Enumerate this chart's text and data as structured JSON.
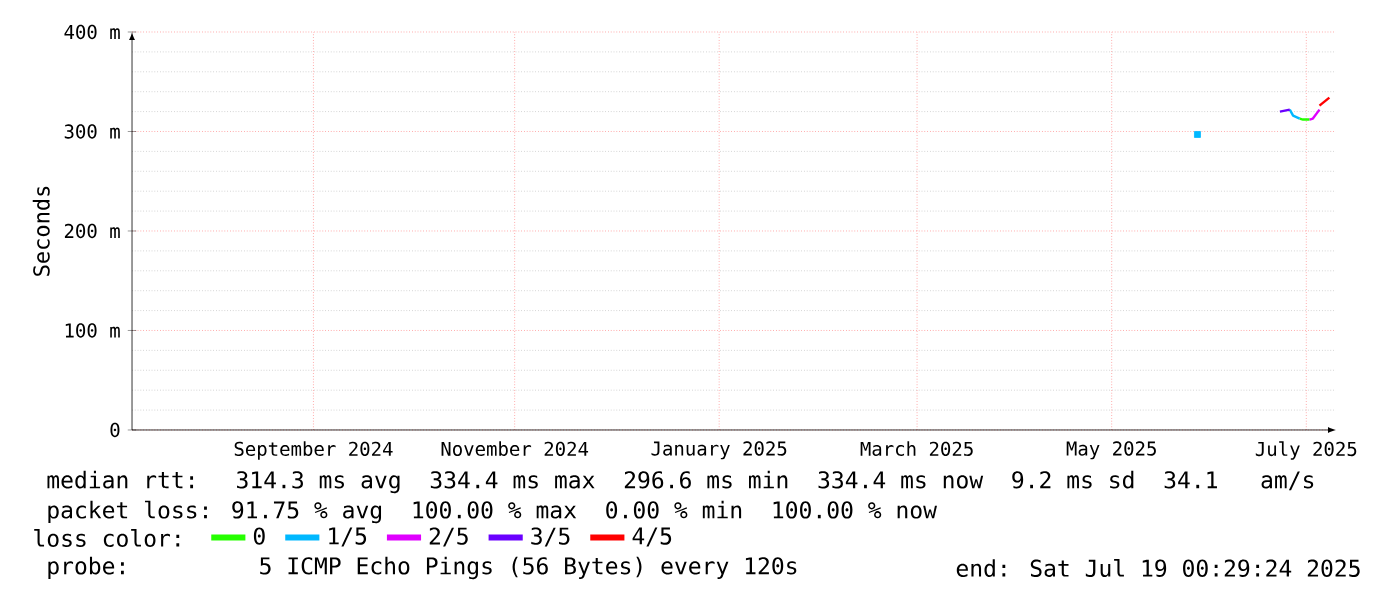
{
  "chart_data": {
    "type": "line",
    "ylabel": "Seconds",
    "xlim": [
      "2024-07-19",
      "2025-07-19"
    ],
    "xticks": [
      {
        "value": "2024-09-12",
        "label": "September 2024"
      },
      {
        "value": "2024-11-12",
        "label": "November 2024"
      },
      {
        "value": "2025-01-13",
        "label": "January 2025"
      },
      {
        "value": "2025-03-14",
        "label": "March 2025"
      },
      {
        "value": "2025-05-12",
        "label": "May 2025"
      },
      {
        "value": "2025-07-10",
        "label": "July 2025"
      }
    ],
    "ylim": [
      0,
      400
    ],
    "yticks": [
      {
        "value": 0,
        "label": "0"
      },
      {
        "value": 100,
        "label": "100 m"
      },
      {
        "value": 200,
        "label": "200 m"
      },
      {
        "value": 300,
        "label": "300 m"
      },
      {
        "value": 400,
        "label": "400 m"
      }
    ],
    "grid": true,
    "legend": "bottom",
    "legend_title": "loss color:",
    "series": [
      {
        "name": "0",
        "color": "#26ff00",
        "x": [
          "2025-07-08",
          "2025-07-09",
          "2025-07-11"
        ],
        "values": [
          313,
          312,
          312
        ]
      },
      {
        "name": "1/5",
        "color": "#00b8ff",
        "x": [
          "2025-07-05",
          "2025-07-06",
          "2025-07-08"
        ],
        "values": [
          322,
          316,
          313
        ]
      },
      {
        "name": "2/5",
        "color": "#e000ff",
        "x": [
          "2025-07-11",
          "2025-07-12",
          "2025-07-14"
        ],
        "values": [
          312,
          313,
          322
        ]
      },
      {
        "name": "3/5",
        "color": "#6a00ff",
        "x": [
          "2025-07-02",
          "2025-07-05"
        ],
        "values": [
          320,
          322
        ]
      },
      {
        "name": "4/5",
        "color": "#ff0000",
        "x": [
          "2025-07-14",
          "2025-07-17"
        ],
        "values": [
          326,
          334
        ]
      },
      {
        "type": "scatter",
        "marker": "square",
        "color": "#00b8ff",
        "x": [
          "2025-06-07"
        ],
        "values": [
          297
        ]
      }
    ],
    "annotations": [
      "median rtt:  314.3 ms avg  334.4 ms max  296.6 ms min  334.4 ms now  9.2 ms sd  34.1   am/s",
      "packet loss: 91.75 % avg  100.00 % max  0.00 % min  100.00 % now",
      "probe:       5 ICMP Echo Pings (56 Bytes) every 120s",
      "end: Sat Jul 19 00:29:24 2025"
    ]
  }
}
